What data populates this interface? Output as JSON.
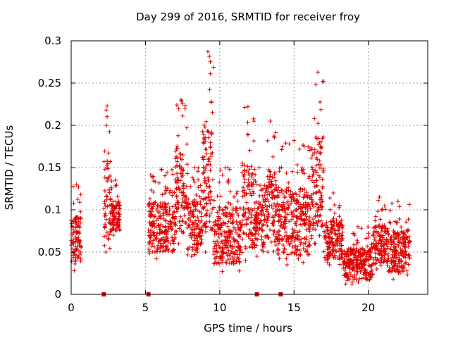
{
  "chart_data": {
    "type": "scatter",
    "title": "Day 299 of 2016, SRMTID for receiver froy",
    "xlabel": "GPS time / hours",
    "ylabel": "SRMTID / TECUs",
    "xlim": [
      0,
      24
    ],
    "ylim": [
      0,
      0.3
    ],
    "xticks": [
      0,
      5,
      10,
      15,
      20
    ],
    "xtick_labels": [
      "0",
      "5",
      "10",
      "15",
      "20"
    ],
    "yticks": [
      0,
      0.05,
      0.1,
      0.15,
      0.2,
      0.25,
      0.3
    ],
    "ytick_labels": [
      "0",
      "0.05",
      "0.1",
      "0.15",
      "0.2",
      "0.25",
      "0.3"
    ],
    "grid": true,
    "marker": "+",
    "color": "#e00000",
    "clusters": [
      {
        "x_start": 0.0,
        "x_end": 0.7,
        "y_min": 0.028,
        "y_max": 0.13
      },
      {
        "x_start": 2.2,
        "x_end": 2.65,
        "y_min": 0.05,
        "y_max": 0.223
      },
      {
        "x_start": 2.65,
        "x_end": 3.3,
        "y_min": 0.07,
        "y_max": 0.135
      },
      {
        "x_start": 5.2,
        "x_end": 7.0,
        "y_min": 0.042,
        "y_max": 0.148
      },
      {
        "x_start": 7.0,
        "x_end": 7.8,
        "y_min": 0.06,
        "y_max": 0.23
      },
      {
        "x_start": 7.8,
        "x_end": 8.8,
        "y_min": 0.045,
        "y_max": 0.15
      },
      {
        "x_start": 8.8,
        "x_end": 9.6,
        "y_min": 0.05,
        "y_max": 0.287
      },
      {
        "x_start": 9.6,
        "x_end": 11.5,
        "y_min": 0.027,
        "y_max": 0.15
      },
      {
        "x_start": 11.5,
        "x_end": 12.3,
        "y_min": 0.04,
        "y_max": 0.222
      },
      {
        "x_start": 12.3,
        "x_end": 13.0,
        "y_min": 0.045,
        "y_max": 0.15
      },
      {
        "x_start": 13.0,
        "x_end": 13.8,
        "y_min": 0.05,
        "y_max": 0.205
      },
      {
        "x_start": 13.8,
        "x_end": 16.2,
        "y_min": 0.035,
        "y_max": 0.182
      },
      {
        "x_start": 16.2,
        "x_end": 17.0,
        "y_min": 0.06,
        "y_max": 0.263
      },
      {
        "x_start": 17.0,
        "x_end": 18.3,
        "y_min": 0.035,
        "y_max": 0.12
      },
      {
        "x_start": 18.3,
        "x_end": 20.3,
        "y_min": 0.012,
        "y_max": 0.08
      },
      {
        "x_start": 20.3,
        "x_end": 21.2,
        "y_min": 0.03,
        "y_max": 0.115
      },
      {
        "x_start": 21.2,
        "x_end": 22.8,
        "y_min": 0.018,
        "y_max": 0.11
      }
    ],
    "zero_markers": [
      2.2,
      5.2,
      12.5,
      14.1
    ]
  }
}
